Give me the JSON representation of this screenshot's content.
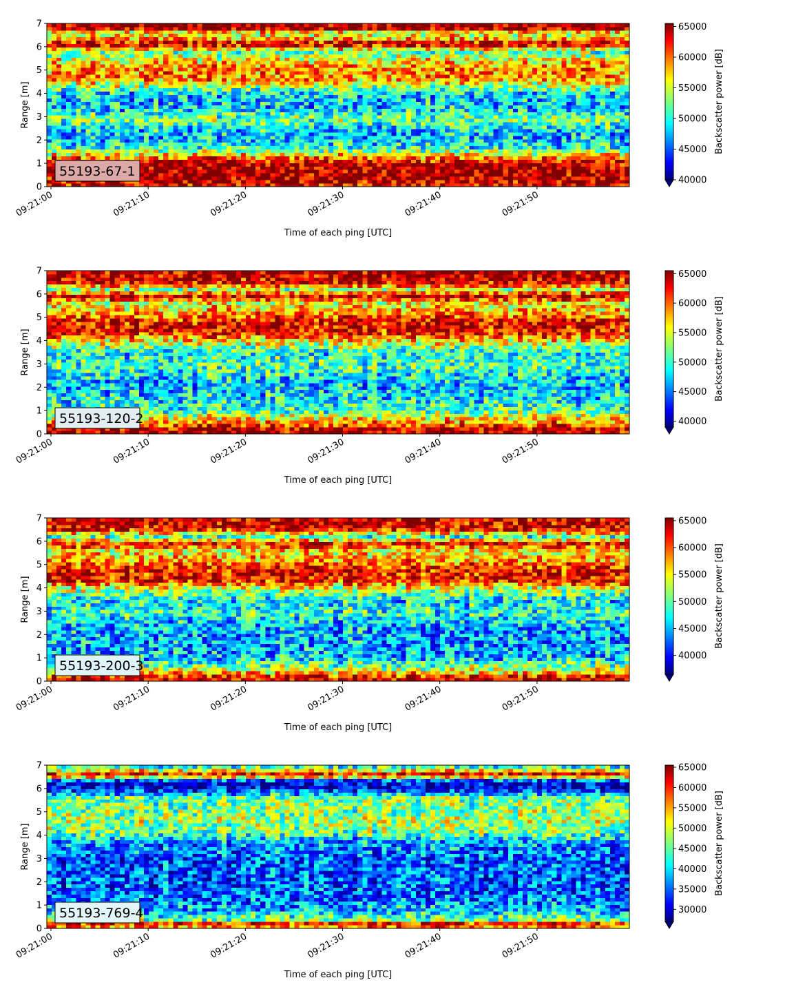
{
  "chart_data": [
    {
      "type": "heatmap",
      "label_box": "55193-67-1",
      "label_box_color": "#dca8a8",
      "xlabel": "Time of each ping [UTC]",
      "ylabel": "Range [m]",
      "colorbar_label": "Backscatter power [dB]",
      "x_ticks": [
        "09:21:00",
        "09:21:10",
        "09:21:20",
        "09:21:30",
        "09:21:40",
        "09:21:50"
      ],
      "y_ticks": [
        "0",
        "1",
        "2",
        "3",
        "4",
        "5",
        "6",
        "7"
      ],
      "colorbar_ticks": [
        "40000",
        "45000",
        "50000",
        "55000",
        "60000",
        "65000"
      ],
      "xlim_seconds": [
        0,
        59.5
      ],
      "ylim": [
        0,
        7
      ],
      "clim": [
        40000,
        65500
      ],
      "colormap": "jet",
      "profile": [
        {
          "y": 0.2,
          "v": 0.92
        },
        {
          "y": 0.5,
          "v": 0.97
        },
        {
          "y": 1.0,
          "v": 0.95
        },
        {
          "y": 1.3,
          "v": 0.72
        },
        {
          "y": 1.7,
          "v": 0.38
        },
        {
          "y": 2.3,
          "v": 0.3
        },
        {
          "y": 2.9,
          "v": 0.5
        },
        {
          "y": 3.4,
          "v": 0.32
        },
        {
          "y": 4.0,
          "v": 0.35
        },
        {
          "y": 4.6,
          "v": 0.72
        },
        {
          "y": 5.1,
          "v": 0.75
        },
        {
          "y": 5.5,
          "v": 0.6
        },
        {
          "y": 5.8,
          "v": 0.45
        },
        {
          "y": 6.1,
          "v": 0.97
        },
        {
          "y": 6.4,
          "v": 0.65
        },
        {
          "y": 6.6,
          "v": 0.6
        },
        {
          "y": 6.8,
          "v": 0.99
        }
      ]
    },
    {
      "type": "heatmap",
      "label_box": "55193-120-2",
      "label_box_color": "#e3eef2",
      "xlabel": "Time of each ping [UTC]",
      "ylabel": "Range [m]",
      "colorbar_label": "Backscatter power [dB]",
      "x_ticks": [
        "09:21:00",
        "09:21:10",
        "09:21:20",
        "09:21:30",
        "09:21:40",
        "09:21:50"
      ],
      "y_ticks": [
        "0",
        "1",
        "2",
        "3",
        "4",
        "5",
        "6",
        "7"
      ],
      "colorbar_ticks": [
        "40000",
        "45000",
        "50000",
        "55000",
        "60000",
        "65000"
      ],
      "xlim_seconds": [
        0,
        59.5
      ],
      "ylim": [
        0,
        7
      ],
      "clim": [
        39000,
        65500
      ],
      "colormap": "jet",
      "profile": [
        {
          "y": 0.2,
          "v": 0.95
        },
        {
          "y": 0.55,
          "v": 0.7
        },
        {
          "y": 1.0,
          "v": 0.45
        },
        {
          "y": 1.6,
          "v": 0.35
        },
        {
          "y": 2.3,
          "v": 0.32
        },
        {
          "y": 2.9,
          "v": 0.45
        },
        {
          "y": 3.5,
          "v": 0.38
        },
        {
          "y": 4.0,
          "v": 0.65
        },
        {
          "y": 4.3,
          "v": 0.85
        },
        {
          "y": 4.8,
          "v": 0.9
        },
        {
          "y": 5.2,
          "v": 0.72
        },
        {
          "y": 5.6,
          "v": 0.6
        },
        {
          "y": 5.9,
          "v": 0.93
        },
        {
          "y": 6.2,
          "v": 0.55
        },
        {
          "y": 6.5,
          "v": 0.9
        },
        {
          "y": 6.8,
          "v": 0.95
        }
      ]
    },
    {
      "type": "heatmap",
      "label_box": "55193-200-3",
      "label_box_color": "#dff4f6",
      "xlabel": "Time of each ping [UTC]",
      "ylabel": "Range [m]",
      "colorbar_label": "Backscatter power [dB]",
      "x_ticks": [
        "09:21:00",
        "09:21:10",
        "09:21:20",
        "09:21:30",
        "09:21:40",
        "09:21:50"
      ],
      "y_ticks": [
        "0",
        "1",
        "2",
        "3",
        "4",
        "5",
        "6",
        "7"
      ],
      "colorbar_ticks": [
        "40000",
        "45000",
        "50000",
        "55000",
        "60000",
        "65000"
      ],
      "xlim_seconds": [
        0,
        59.5
      ],
      "ylim": [
        0,
        7
      ],
      "clim": [
        36500,
        65500
      ],
      "colormap": "jet",
      "profile": [
        {
          "y": 0.15,
          "v": 0.92
        },
        {
          "y": 0.45,
          "v": 0.6
        },
        {
          "y": 1.0,
          "v": 0.32
        },
        {
          "y": 1.6,
          "v": 0.28
        },
        {
          "y": 2.3,
          "v": 0.3
        },
        {
          "y": 2.9,
          "v": 0.42
        },
        {
          "y": 3.5,
          "v": 0.35
        },
        {
          "y": 4.0,
          "v": 0.6
        },
        {
          "y": 4.3,
          "v": 0.86
        },
        {
          "y": 4.8,
          "v": 0.88
        },
        {
          "y": 5.2,
          "v": 0.7
        },
        {
          "y": 5.6,
          "v": 0.62
        },
        {
          "y": 5.9,
          "v": 0.88
        },
        {
          "y": 6.2,
          "v": 0.45
        },
        {
          "y": 6.5,
          "v": 0.88
        },
        {
          "y": 6.8,
          "v": 0.92
        }
      ]
    },
    {
      "type": "heatmap",
      "label_box": "55193-769-4",
      "label_box_color": "#e3f6f7",
      "xlabel": "Time of each ping [UTC]",
      "ylabel": "Range [m]",
      "colorbar_label": "Backscatter power [dB]",
      "x_ticks": [
        "09:21:00",
        "09:21:10",
        "09:21:20",
        "09:21:30",
        "09:21:40",
        "09:21:50"
      ],
      "y_ticks": [
        "0",
        "1",
        "2",
        "3",
        "4",
        "5",
        "6",
        "7"
      ],
      "colorbar_ticks": [
        "30000",
        "35000",
        "40000",
        "45000",
        "50000",
        "55000",
        "60000",
        "65000"
      ],
      "xlim_seconds": [
        0,
        59.5
      ],
      "ylim": [
        0,
        7
      ],
      "clim": [
        27000,
        65500
      ],
      "colormap": "jet",
      "profile": [
        {
          "y": 0.05,
          "v": 0.75
        },
        {
          "y": 0.2,
          "v": 0.9
        },
        {
          "y": 0.35,
          "v": 0.5
        },
        {
          "y": 0.8,
          "v": 0.3
        },
        {
          "y": 1.5,
          "v": 0.22
        },
        {
          "y": 2.3,
          "v": 0.22
        },
        {
          "y": 3.0,
          "v": 0.22
        },
        {
          "y": 3.7,
          "v": 0.28
        },
        {
          "y": 4.1,
          "v": 0.48
        },
        {
          "y": 4.6,
          "v": 0.55
        },
        {
          "y": 5.1,
          "v": 0.5
        },
        {
          "y": 5.6,
          "v": 0.48
        },
        {
          "y": 6.0,
          "v": 0.1
        },
        {
          "y": 6.3,
          "v": 0.12
        },
        {
          "y": 6.6,
          "v": 0.95
        },
        {
          "y": 6.9,
          "v": 0.42
        }
      ]
    }
  ]
}
